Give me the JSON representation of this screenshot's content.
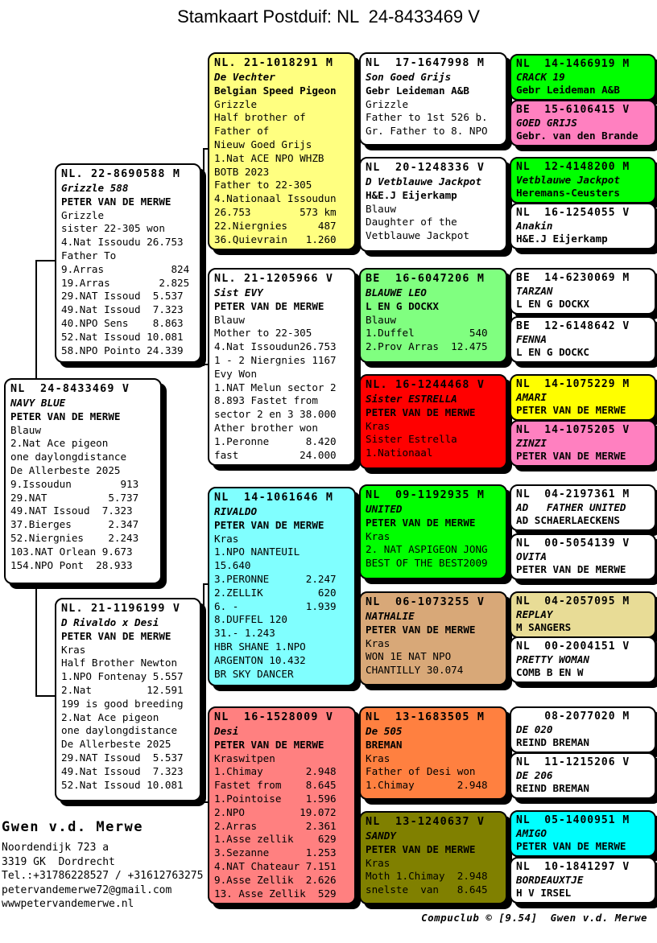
{
  "title": "Stamkaart Postduif: NL  24-8433469 V",
  "footer": "Compuclub © [9.54]  Gwen v.d. Merwe",
  "contact": {
    "name": "Gwen v.d. Merwe",
    "lines": "Noordendijk 723 a\n3319 GK  Dordrecht\nTel.:+31786228527 / +31612763275\npetervandemerwe72@gmail.com\nwwwpetervandemerwe.nl"
  },
  "pedigree": {
    "boxes": [
      {
        "id": "main",
        "ring": "NL  24-8433469 V",
        "name": "NAVY BLUE",
        "owner": "PETER VAN DE MERWE",
        "bg": "#FFFFFF",
        "body": "Blauw\n2.Nat Ace pigeon\none daylongdistance\nDe Allerbeste 2025\n9.Issoudun        913\n29.NAT          5.737\n49.NAT Issoud  7.323\n37.Bierges      2.347\n52.Niergnies    2.243\n103.NAT Orlean 9.673\n154.NPO Pont  28.933"
      },
      {
        "id": "p1",
        "ring": "NL. 22-8690588 M",
        "name": "Grizzle 588",
        "owner": "PETER VAN DE MERWE",
        "bg": "#FFFFFF",
        "body": "Grizzle\nsister 22-305 won\n4.Nat Issoudu 26.753\nFather To\n9.Arras           824\n19.Arras        2.825\n29.NAT Issoud  5.537\n49.Nat Issoud  7.323\n40.NPO Sens    8.863\n52.Nat Issoud 10.081\n58.NPO Pointo 24.339"
      },
      {
        "id": "p2",
        "ring": "NL. 21-1196199 V",
        "name": "D Rivaldo x Desi",
        "owner": "PETER VAN DE MERWE",
        "bg": "#FFFFFF",
        "body": "Kras\nHalf Brother Newton\n1.NPO Fontenay 5.557\n2.Nat         12.591\n199 is good breeding\n2.Nat Ace pigeon\none daylongdistance\nDe Allerbeste 2025\n29.NAT Issoud  5.537\n49.Nat Issoud  7.323\n52.Nat Issoud 10.081"
      },
      {
        "id": "g1",
        "ring": "NL. 21-1018291 M",
        "name": "De Vechter",
        "owner": "Belgian Speed Pigeon",
        "bg": "#FFFF80",
        "body": "Grizzle\nHalf brother of\nFather of\nNieuw Goed Grijs\n1.Nat ACE NPO WHZB\nBOTB 2023\nFather to 22-305\n4.Nationaal Issoudun\n26.753        573 km\n22.Niergnies     487\n36.Quievrain   1.260"
      },
      {
        "id": "g2",
        "ring": "NL. 21-1205966 V",
        "name": "Sist EVY",
        "owner": "PETER VAN DE MERWE",
        "bg": "#FFFFFF",
        "body": "Blauw\nMother to 22-305\n4.Nat Issoudun26.753\n1 - 2 Niergnies 1167\nEvy Won\n1.NAT Melun sector 2\n8.893 Fastet from\nsector 2 en 3 38.000\nAther brother won\n1.Peronne      8.420\nfast          24.000"
      },
      {
        "id": "g3",
        "ring": "NL  14-1061646 M",
        "name": "RIVALDO",
        "owner": "PETER VAN DE MERWE",
        "bg": "#80FFFF",
        "body": "Kras\n1.NPO NANTEUIL\n15.640\n3.PERONNE      2.247\n2.ZELLIK         620\n6. -           1.939\n8.DUFFEL 120\n31.- 1.243\nHBR SHANE 1.NPO\nARGENTON 10.432\nBR SKY DANCER"
      },
      {
        "id": "g4",
        "ring": "NL  16-1528009 V",
        "name": "Desi",
        "owner": "PETER VAN DE MERWE",
        "bg": "#FF8080",
        "body": "Kraswitpen\n1.Chimay       2.948\nFastet from    8.645\n1.Pointoise    1.596\n2.NPO         19.072\n2.Arras        2.361\n1.Asse zellik    629\n3.Sezanne      1.253\n4.NAT Chateaur 7.151\n9.Asse Zellik  2.626\n13. Asse Zellik  529"
      },
      {
        "id": "gg1",
        "ring": "NL  17-1647998 M",
        "name": "Son Goed Grijs",
        "owner": "Gebr Leideman A&B",
        "bg": "#FFFFFF",
        "body": "Grizzle\nFather to 1st 526 b.\nGr. Father to 8. NPO"
      },
      {
        "id": "gg2",
        "ring": "NL  20-1248336 V",
        "name": "D Vetblauwe Jackpot",
        "owner": "H&E.J Eijerkamp",
        "bg": "#FFFFFF",
        "body": "Blauw\nDaughter of the\nVetblauwe Jackpot"
      },
      {
        "id": "gg3",
        "ring": "BE  16-6047206 M",
        "name": "BLAUWE LEO",
        "owner": "L EN G DOCKX",
        "bg": "#80FF80",
        "body": "Blauw\n1.Duffel         540\n2.Prov Arras  12.475"
      },
      {
        "id": "gg4",
        "ring": "NL. 16-1244468 V",
        "name": "Sister ESTRELLA",
        "owner": "PETER VAN DE MERWE",
        "bg": "#FF0000",
        "body": "Kras\nSister Estrella\n1.Nationaal"
      },
      {
        "id": "gg5",
        "ring": "NL  09-1192935 M",
        "name": "UNITED",
        "owner": "PETER VAN DE MERWE",
        "bg": "#00FF00",
        "body": "Kras\n2. NAT ASPIGEON JONG\nBEST OF THE BEST2009"
      },
      {
        "id": "gg6",
        "ring": "NL  06-1073255 V",
        "name": "NATHALIE",
        "owner": "PETER VAN DE MERWE",
        "bg": "#D8A878",
        "body": "Kras\nWON 1E NAT NPO\nCHANTILLY 30.074"
      },
      {
        "id": "gg7",
        "ring": "NL  13-1683505 M",
        "name": "De 505",
        "owner": "BREMAN",
        "bg": "#FF8040",
        "body": "Kras\nFather of Desi won\n1.Chimay       2.948"
      },
      {
        "id": "gg8",
        "ring": "NL  13-1240637 V",
        "name": "SANDY",
        "owner": "PETER VAN DE MERWE",
        "bg": "#808000",
        "body": "Kras\nMoth 1.Chimay  2.948\nsnelste  van   8.645"
      },
      {
        "id": "h1",
        "ring": "NL  14-1466919 M",
        "name": "CRACK 19",
        "owner": "Gebr Leideman A&B",
        "bg": "#00FF00"
      },
      {
        "id": "h2",
        "ring": "BE  15-6106415 V",
        "name": "GOED GRIJS",
        "owner": "Gebr. van den Brande",
        "bg": "#FF80C0"
      },
      {
        "id": "h3",
        "ring": "NL  12-4148200 M",
        "name": "Vetblauwe Jackpot",
        "owner": "Heremans-Ceusters",
        "bg": "#00FF00"
      },
      {
        "id": "h4",
        "ring": "NL  16-1254055 V",
        "name": "Anakin",
        "owner": "H&E.J Eijerkamp",
        "bg": "#FFFFFF"
      },
      {
        "id": "h5",
        "ring": "BE  14-6230069 M",
        "name": "TARZAN",
        "owner": "L EN G DOCKX",
        "bg": "#FFFFFF"
      },
      {
        "id": "h6",
        "ring": "BE  12-6148642 V",
        "name": "FENNA",
        "owner": "L EN G DOCKC",
        "bg": "#FFFFFF"
      },
      {
        "id": "h7",
        "ring": "NL  14-1075229 M",
        "name": "AMARI",
        "owner": "PETER VAN DE MERWE",
        "bg": "#FFFF00"
      },
      {
        "id": "h8",
        "ring": "NL  14-1075205 V",
        "name": "ZINZI",
        "owner": "PETER VAN DE MERWE",
        "bg": "#FF80C0"
      },
      {
        "id": "h9",
        "ring": "NL  04-2197361 M",
        "name": "AD   FATHER UNITED",
        "owner": "AD SCHAERLAECKENS",
        "bg": "#FFFFFF"
      },
      {
        "id": "h10",
        "ring": "NL  00-5054139 V",
        "name": "OVITA",
        "owner": "PETER VAN DE MERWE",
        "bg": "#FFFFFF"
      },
      {
        "id": "h11",
        "ring": "NL  04-2057095 M",
        "name": "REPLAY",
        "owner": "M SANGERS",
        "bg": "#E8DC96"
      },
      {
        "id": "h12",
        "ring": "NL  00-2004151 V",
        "name": "PRETTY WOMAN",
        "owner": "COMB B EN W",
        "bg": "#FFFFFF"
      },
      {
        "id": "h13",
        "ring": "    08-2077020 M",
        "name": "DE 020",
        "owner": "REIND BREMAN",
        "bg": "#FFFFFF"
      },
      {
        "id": "h14",
        "ring": "NL  11-1215206 V",
        "name": "DE 206",
        "owner": "REIND BREMAN",
        "bg": "#FFFFFF"
      },
      {
        "id": "h15",
        "ring": "NL  05-1400951 M",
        "name": "AMIGO",
        "owner": "PETER VAN DE MERWE",
        "bg": "#00FFFF"
      },
      {
        "id": "h16",
        "ring": "NL  10-1841297 V",
        "name": "BORDEAUXTJE",
        "owner": "H V IRSEL",
        "bg": "#FFFFFF"
      }
    ]
  }
}
